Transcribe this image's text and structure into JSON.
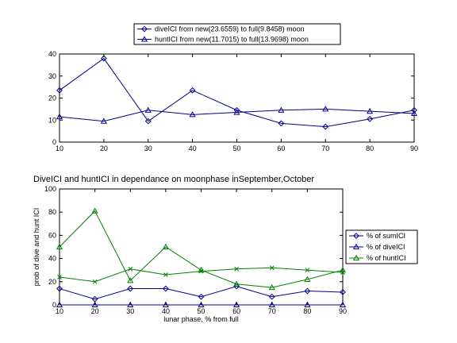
{
  "chart_data": [
    {
      "type": "line",
      "title": "",
      "xlabel": "",
      "ylabel": "",
      "x": [
        10,
        20,
        30,
        40,
        50,
        60,
        70,
        80,
        90
      ],
      "xlim": [
        10,
        90
      ],
      "ylim": [
        0,
        40
      ],
      "xticks": [
        10,
        20,
        30,
        40,
        50,
        60,
        70,
        80,
        90
      ],
      "yticks": [
        0,
        10,
        20,
        30,
        40
      ],
      "legend_position": "top-center",
      "series": [
        {
          "name": "diveICI from new(23.6559) to full(9.8458) moon",
          "marker": "diamond",
          "color": "#00008b",
          "values": [
            23.5,
            38,
            9.5,
            23.5,
            14.5,
            8.5,
            7,
            10.5,
            14.5
          ]
        },
        {
          "name": "huntICI from new(11.7015) to full(13.9698) moon",
          "marker": "triangle",
          "color": "#00008b",
          "values": [
            11.5,
            9.5,
            14.5,
            12.5,
            13.5,
            14.5,
            15,
            14,
            13
          ]
        }
      ]
    },
    {
      "type": "line",
      "title": "DiveICI and huntICI in dependance on moonphase inSeptember,October",
      "xlabel": "lunar phase, % from full",
      "ylabel": "prob of dive and hunt ICI",
      "x": [
        10,
        20,
        30,
        40,
        50,
        60,
        70,
        80,
        90
      ],
      "xlim": [
        10,
        90
      ],
      "ylim": [
        0,
        100
      ],
      "xticks": [
        10,
        20,
        30,
        40,
        50,
        60,
        70,
        80,
        90
      ],
      "yticks": [
        0,
        20,
        40,
        60,
        80,
        100
      ],
      "legend_position": "right",
      "series": [
        {
          "name": "% of sumICI",
          "marker": "diamond",
          "color": "#00008b",
          "values": [
            14,
            5,
            14,
            14,
            7,
            16,
            7,
            12,
            11
          ]
        },
        {
          "name": "% of diveICI",
          "marker": "triangle",
          "color": "#00008b",
          "values": [
            0,
            0,
            0,
            0,
            0,
            0,
            0,
            0,
            0
          ]
        },
        {
          "name": "% of huntICI",
          "marker": "triangle",
          "color": "#008000",
          "values": [
            50,
            81,
            21,
            50,
            30,
            18,
            15,
            22,
            30
          ]
        },
        {
          "name": "",
          "marker": "x",
          "color": "#008000",
          "values": [
            24,
            20,
            31,
            26,
            29,
            31,
            32,
            30,
            28
          ]
        }
      ]
    }
  ]
}
